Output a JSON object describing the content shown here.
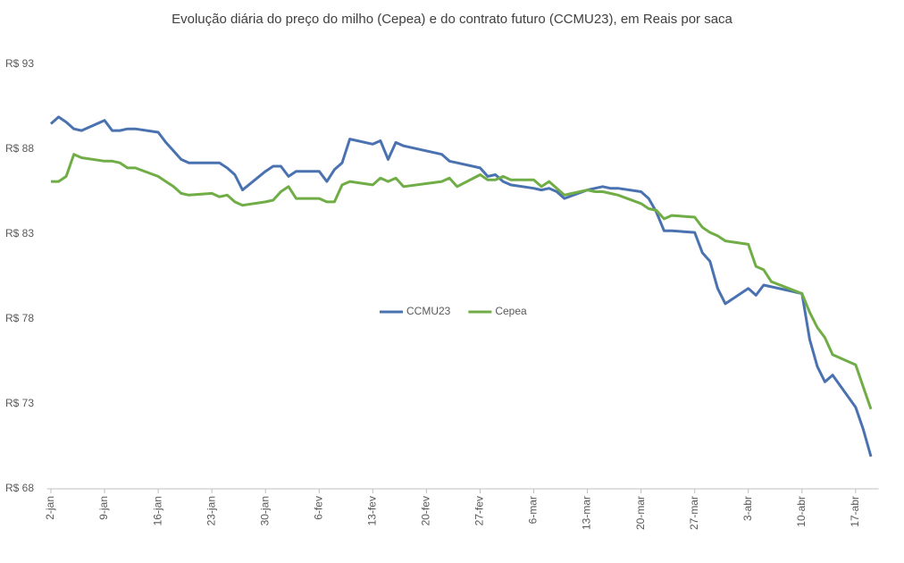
{
  "chart_data": {
    "type": "line",
    "title": "Evolução diária do preço do milho (Cepea) e do contrato futuro (CCMU23), em Reais por saca",
    "x": [
      0,
      1,
      2,
      3,
      4,
      7,
      8,
      9,
      10,
      11,
      14,
      15,
      16,
      17,
      18,
      21,
      22,
      23,
      24,
      25,
      28,
      29,
      30,
      31,
      32,
      35,
      36,
      37,
      38,
      39,
      42,
      43,
      44,
      45,
      46,
      51,
      52,
      53,
      56,
      57,
      58,
      59,
      60,
      63,
      64,
      65,
      66,
      67,
      70,
      71,
      72,
      73,
      74,
      77,
      78,
      79,
      80,
      81,
      84,
      85,
      86,
      87,
      88,
      91,
      92,
      93,
      94,
      98,
      99,
      100,
      101,
      102,
      105,
      106,
      107
    ],
    "xlim": [
      -0.5,
      108
    ],
    "xticks": [
      {
        "value": 0,
        "label": "2-jan"
      },
      {
        "value": 7,
        "label": "9-jan"
      },
      {
        "value": 14,
        "label": "16-jan"
      },
      {
        "value": 21,
        "label": "23-jan"
      },
      {
        "value": 28,
        "label": "30-jan"
      },
      {
        "value": 35,
        "label": "6-fev"
      },
      {
        "value": 42,
        "label": "13-fev"
      },
      {
        "value": 49,
        "label": "20-fev"
      },
      {
        "value": 56,
        "label": "27-fev"
      },
      {
        "value": 63,
        "label": "6-mar"
      },
      {
        "value": 70,
        "label": "13-mar"
      },
      {
        "value": 77,
        "label": "20-mar"
      },
      {
        "value": 84,
        "label": "27-mar"
      },
      {
        "value": 91,
        "label": "3-abr"
      },
      {
        "value": 98,
        "label": "10-abr"
      },
      {
        "value": 105,
        "label": "17-abr"
      }
    ],
    "ylim": [
      68,
      93
    ],
    "yticks": [
      {
        "value": 68,
        "label": "R$ 68"
      },
      {
        "value": 73,
        "label": "R$ 73"
      },
      {
        "value": 78,
        "label": "R$ 78"
      },
      {
        "value": 83,
        "label": "R$ 83"
      },
      {
        "value": 88,
        "label": "R$ 88"
      },
      {
        "value": 93,
        "label": "R$ 93"
      }
    ],
    "grid": false,
    "legend_position": "center",
    "series": [
      {
        "name": "CCMU23",
        "color": "#4a72b0",
        "values": [
          89.5,
          89.9,
          89.6,
          89.2,
          89.1,
          89.7,
          89.1,
          89.1,
          89.2,
          89.2,
          89.0,
          88.4,
          87.9,
          87.4,
          87.2,
          87.2,
          87.2,
          86.9,
          86.5,
          85.6,
          86.7,
          87.0,
          87.0,
          86.4,
          86.7,
          86.7,
          86.1,
          86.8,
          87.2,
          88.6,
          88.3,
          88.5,
          87.4,
          88.4,
          88.2,
          87.7,
          87.3,
          87.2,
          86.9,
          86.4,
          86.5,
          86.1,
          85.9,
          85.7,
          85.6,
          85.7,
          85.5,
          85.1,
          85.6,
          85.7,
          85.8,
          85.7,
          85.7,
          85.5,
          85.1,
          84.3,
          83.2,
          83.2,
          83.1,
          81.9,
          81.4,
          79.8,
          78.9,
          79.8,
          79.4,
          80.0,
          79.9,
          79.5,
          76.8,
          75.2,
          74.3,
          74.7,
          72.8,
          71.5,
          69.9
        ]
      },
      {
        "name": "Cepea",
        "color": "#70ad47",
        "values": [
          86.1,
          86.1,
          86.4,
          87.7,
          87.5,
          87.3,
          87.3,
          87.2,
          86.9,
          86.9,
          86.4,
          86.1,
          85.8,
          85.4,
          85.3,
          85.4,
          85.2,
          85.3,
          84.9,
          84.7,
          84.9,
          85.0,
          85.5,
          85.8,
          85.1,
          85.1,
          84.9,
          84.9,
          85.9,
          86.1,
          85.9,
          86.3,
          86.1,
          86.3,
          85.8,
          86.1,
          86.3,
          85.8,
          86.5,
          86.2,
          86.2,
          86.4,
          86.2,
          86.2,
          85.8,
          86.1,
          85.7,
          85.3,
          85.6,
          85.5,
          85.5,
          85.4,
          85.3,
          84.8,
          84.5,
          84.4,
          83.9,
          84.1,
          84.0,
          83.4,
          83.1,
          82.9,
          82.6,
          82.4,
          81.1,
          80.9,
          80.2,
          79.5,
          78.4,
          77.5,
          76.9,
          75.9,
          75.3,
          74.0,
          72.7
        ]
      }
    ]
  }
}
